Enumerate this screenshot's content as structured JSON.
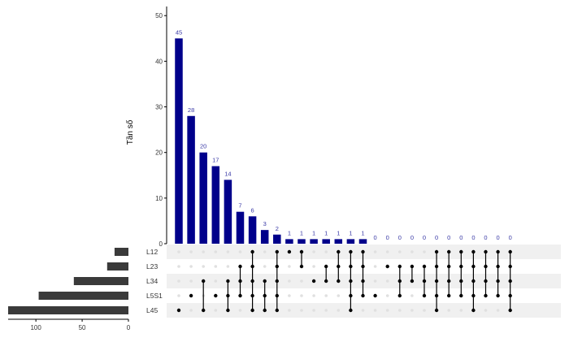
{
  "chart_data": {
    "type": "upset",
    "ylabel": "Tần số",
    "ylim": [
      0,
      52
    ],
    "y_ticks": [
      0,
      10,
      20,
      30,
      40,
      50
    ],
    "sets": [
      "L12",
      "L23",
      "L34",
      "L5S1",
      "L45"
    ],
    "set_sizes": [
      15,
      23,
      59,
      97,
      130
    ],
    "set_size_ticks": [
      100,
      50,
      0
    ],
    "set_size_xlim": [
      0,
      130
    ],
    "intersections": [
      {
        "value": 45,
        "sets": [
          "L45"
        ]
      },
      {
        "value": 28,
        "sets": [
          "L5S1"
        ]
      },
      {
        "value": 20,
        "sets": [
          "L34",
          "L45"
        ]
      },
      {
        "value": 17,
        "sets": [
          "L5S1"
        ]
      },
      {
        "value": 14,
        "sets": [
          "L34",
          "L5S1",
          "L45"
        ]
      },
      {
        "value": 7,
        "sets": [
          "L23",
          "L34",
          "L5S1"
        ]
      },
      {
        "value": 6,
        "sets": [
          "L12",
          "L23",
          "L34",
          "L5S1",
          "L45"
        ]
      },
      {
        "value": 3,
        "sets": [
          "L34",
          "L5S1",
          "L45"
        ]
      },
      {
        "value": 2,
        "sets": [
          "L12",
          "L23",
          "L34",
          "L5S1",
          "L45"
        ]
      },
      {
        "value": 1,
        "sets": [
          "L12"
        ]
      },
      {
        "value": 1,
        "sets": [
          "L12",
          "L23"
        ]
      },
      {
        "value": 1,
        "sets": [
          "L34"
        ]
      },
      {
        "value": 1,
        "sets": [
          "L23",
          "L34"
        ]
      },
      {
        "value": 1,
        "sets": [
          "L12",
          "L23",
          "L34"
        ]
      },
      {
        "value": 1,
        "sets": [
          "L12",
          "L23",
          "L34",
          "L5S1",
          "L45"
        ]
      },
      {
        "value": 1,
        "sets": [
          "L12",
          "L23",
          "L34",
          "L5S1"
        ]
      },
      {
        "value": 0,
        "sets": [
          "L5S1"
        ]
      },
      {
        "value": 0,
        "sets": [
          "L23"
        ]
      },
      {
        "value": 0,
        "sets": [
          "L23",
          "L34",
          "L5S1"
        ]
      },
      {
        "value": 0,
        "sets": [
          "L23",
          "L34"
        ]
      },
      {
        "value": 0,
        "sets": [
          "L23",
          "L34",
          "L5S1"
        ]
      },
      {
        "value": 0,
        "sets": [
          "L12",
          "L23",
          "L34",
          "L5S1",
          "L45"
        ]
      },
      {
        "value": 0,
        "sets": [
          "L12",
          "L23",
          "L34",
          "L5S1"
        ]
      },
      {
        "value": 0,
        "sets": [
          "L12",
          "L23",
          "L34",
          "L5S1"
        ]
      },
      {
        "value": 0,
        "sets": [
          "L12",
          "L23",
          "L34",
          "L5S1",
          "L45"
        ]
      },
      {
        "value": 0,
        "sets": [
          "L12",
          "L23",
          "L34",
          "L5S1"
        ]
      },
      {
        "value": 0,
        "sets": [
          "L12",
          "L23",
          "L34",
          "L5S1"
        ]
      },
      {
        "value": 0,
        "sets": [
          "L12",
          "L23",
          "L34",
          "L5S1",
          "L45"
        ]
      }
    ],
    "colors": {
      "bar": "#00008b",
      "bar_label": "#3a3aa6",
      "set_bar": "#3a3a3a",
      "dot_on": "#000000",
      "dot_off": "#e0e0e0",
      "row_shade": "#f0f0f0",
      "axis": "#000000",
      "text": "#333333"
    },
    "grid": false
  }
}
